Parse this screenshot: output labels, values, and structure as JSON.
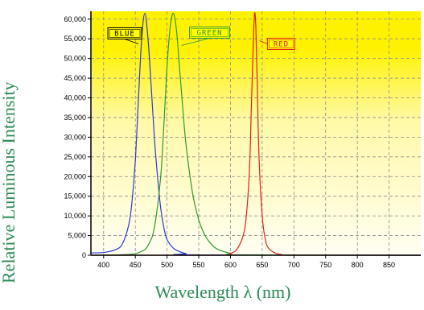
{
  "chart_data": {
    "type": "line",
    "title": "",
    "xlabel": "Wavelength λ (nm)",
    "ylabel": "Relative Luminous Intensity",
    "xlim": [
      380,
      900
    ],
    "ylim": [
      0,
      62000
    ],
    "x_ticks": [
      "400",
      "450",
      "500",
      "550",
      "600",
      "650",
      "700",
      "750",
      "800",
      "850"
    ],
    "y_ticks": [
      "0",
      "5,000",
      "10,000",
      "15,000",
      "20,000",
      "25,000",
      "30,000",
      "35,000",
      "40,000",
      "45,000",
      "50,000",
      "55,000",
      "60,000"
    ],
    "grid": true,
    "series": [
      {
        "name": "BLUE",
        "color": "#2b3bd6",
        "x": [
          380,
          400,
          420,
          430,
          440,
          445,
          450,
          455,
          460,
          465,
          470,
          475,
          480,
          485,
          490,
          495,
          500,
          510,
          520,
          530,
          540,
          900
        ],
        "y": [
          600,
          700,
          1500,
          3000,
          8000,
          14000,
          24000,
          40000,
          55000,
          61500,
          55000,
          43000,
          30000,
          20000,
          12000,
          7000,
          4000,
          1800,
          900,
          400,
          100,
          0
        ]
      },
      {
        "name": "GREEN",
        "color": "#2f9a2f",
        "x": [
          380,
          440,
          460,
          470,
          480,
          490,
          495,
          500,
          505,
          510,
          515,
          520,
          525,
          530,
          540,
          550,
          560,
          570,
          580,
          600,
          620,
          900
        ],
        "y": [
          0,
          200,
          1000,
          2500,
          7000,
          20000,
          33000,
          48000,
          58000,
          61500,
          57000,
          47000,
          37000,
          28000,
          16000,
          9000,
          5000,
          2800,
          1500,
          500,
          100,
          0
        ]
      },
      {
        "name": "RED",
        "color": "#e02020",
        "x": [
          380,
          580,
          600,
          610,
          620,
          625,
          630,
          633,
          636,
          638,
          640,
          642,
          645,
          650,
          655,
          660,
          670,
          680,
          700,
          900
        ],
        "y": [
          0,
          0,
          500,
          1500,
          5000,
          10000,
          22000,
          38000,
          54000,
          61500,
          58000,
          45000,
          25000,
          10000,
          4000,
          1800,
          600,
          200,
          0,
          0
        ]
      }
    ],
    "annotations": [
      {
        "text": "BLUE",
        "series": "BLUE",
        "box_fill": "#fffb00",
        "text_color": "#000000"
      },
      {
        "text": "GREEN",
        "series": "GREEN",
        "box_fill": "#fffb00",
        "text_color": "#2f9a2f"
      },
      {
        "text": "RED",
        "series": "RED",
        "box_fill": "#fffb00",
        "text_color": "#e02020"
      }
    ]
  },
  "colors": {
    "gradient_top": "#fff200",
    "gradient_bottom": "#fffde8",
    "grid": "#8c8c8c",
    "axis_title": "#2e8b57"
  }
}
